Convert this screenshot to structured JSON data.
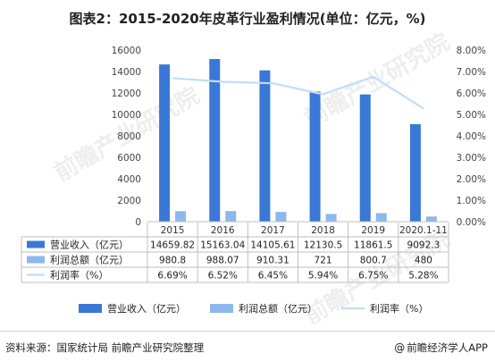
{
  "title": "图表2：2015-2020年皮革行业盈利情况(单位：亿元，%)",
  "footer": {
    "source": "资料来源：国家统计局 前瞻产业研究院整理",
    "brand": "前瞻经济学人APP",
    "brand_icon": "at-sign-icon"
  },
  "watermark": "前瞻产业研究院",
  "colors": {
    "revenue": "#3a78d6",
    "profit": "#8db8ec",
    "rate": "#c5dcf6",
    "grid": "#e0e0e0",
    "table_border": "#bfbfbf"
  },
  "chart_data": {
    "type": "bar",
    "categories": [
      "2015",
      "2016",
      "2017",
      "2018",
      "2019",
      "2020.1-11"
    ],
    "series": [
      {
        "name": "营业收入（亿元）",
        "legend_label": "营业收入（亿元）",
        "type": "bar",
        "axis": "left",
        "values": [
          14659.82,
          15163.04,
          14105.61,
          12130.5,
          11861.5,
          9092.3
        ],
        "labels": [
          "14659.82",
          "15163.04",
          "14105.61",
          "12130.5",
          "11861.5",
          "9092.3"
        ]
      },
      {
        "name": "利润总额（亿元）",
        "legend_label": "利润总额（亿元）",
        "type": "bar",
        "axis": "left",
        "values": [
          980.8,
          988.07,
          910.31,
          721,
          800.7,
          480
        ],
        "labels": [
          "980.8",
          "988.07",
          "910.31",
          "721",
          "800.7",
          "480"
        ]
      },
      {
        "name": "利润率（%）",
        "legend_label": "利润率（%）",
        "type": "line",
        "axis": "right",
        "values": [
          6.69,
          6.52,
          6.45,
          5.94,
          6.75,
          5.28
        ],
        "labels": [
          "6.69%",
          "6.52%",
          "6.45%",
          "5.94%",
          "6.75%",
          "5.28%"
        ]
      }
    ],
    "y_left": {
      "min": 0,
      "max": 16000,
      "ticks": [
        "0",
        "2000",
        "4000",
        "6000",
        "8000",
        "10000",
        "12000",
        "14000",
        "16000"
      ]
    },
    "y_right": {
      "min": 0,
      "max": 8,
      "ticks": [
        "0.00%",
        "1.00%",
        "2.00%",
        "3.00%",
        "4.00%",
        "5.00%",
        "6.00%",
        "7.00%",
        "8.00%"
      ]
    },
    "grid": false,
    "legend_position": "bottom",
    "data_table": true
  }
}
